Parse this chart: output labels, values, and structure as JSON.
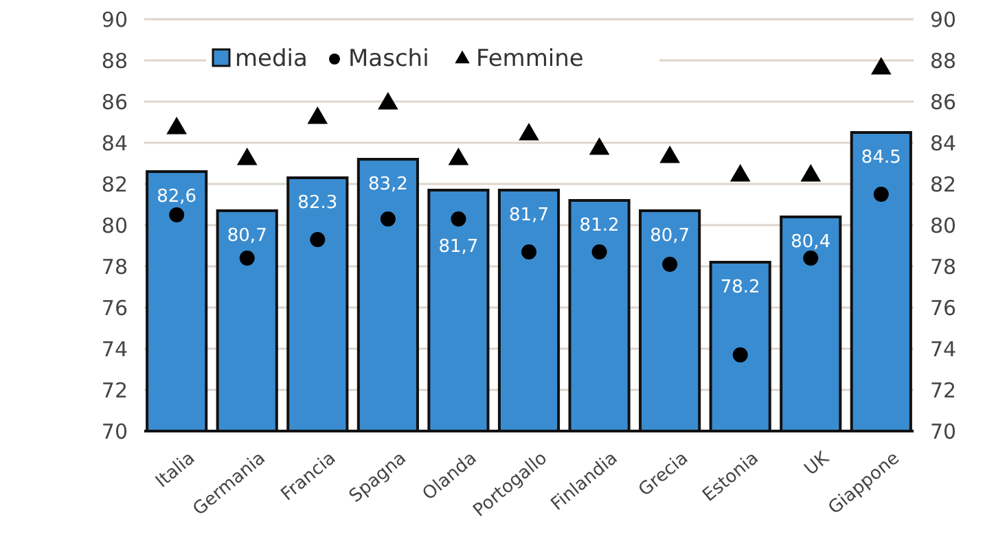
{
  "chart_data": {
    "type": "bar",
    "categories": [
      "Italia",
      "Germania",
      "Francia",
      "Spagna",
      "Olanda",
      "Portogallo",
      "Finlandia",
      "Grecia",
      "Estonia",
      "UK",
      "Giappone"
    ],
    "series": [
      {
        "name": "media",
        "color": "#3a8cd0",
        "values": [
          82.6,
          80.7,
          82.3,
          83.2,
          81.7,
          81.7,
          81.2,
          80.7,
          78.2,
          80.4,
          84.5
        ],
        "value_labels": [
          "82,6",
          "80,7",
          "82.3",
          "83,2",
          "81,7",
          "81,7",
          "81.2",
          "80,7",
          "78.2",
          "80,4",
          "84.5"
        ]
      },
      {
        "name": "Maschi",
        "type": "scatter",
        "marker": "circle",
        "color": "#000000",
        "values": [
          80.5,
          78.4,
          79.3,
          80.3,
          80.3,
          78.7,
          78.7,
          78.1,
          73.7,
          78.4,
          81.5
        ]
      },
      {
        "name": "Femmine",
        "type": "scatter",
        "marker": "triangle",
        "color": "#000000",
        "values": [
          84.7,
          83.2,
          85.2,
          85.9,
          83.2,
          84.4,
          83.7,
          83.3,
          82.4,
          82.4,
          87.6
        ]
      }
    ],
    "ylim": [
      70,
      90
    ],
    "yticks": [
      70,
      72,
      74,
      76,
      78,
      80,
      82,
      84,
      86,
      88,
      90
    ],
    "y2lim": [
      70,
      90
    ],
    "y2ticks": [
      70,
      72,
      74,
      76,
      78,
      80,
      82,
      84,
      86,
      88,
      90
    ],
    "grid": "y",
    "legend": "top"
  }
}
